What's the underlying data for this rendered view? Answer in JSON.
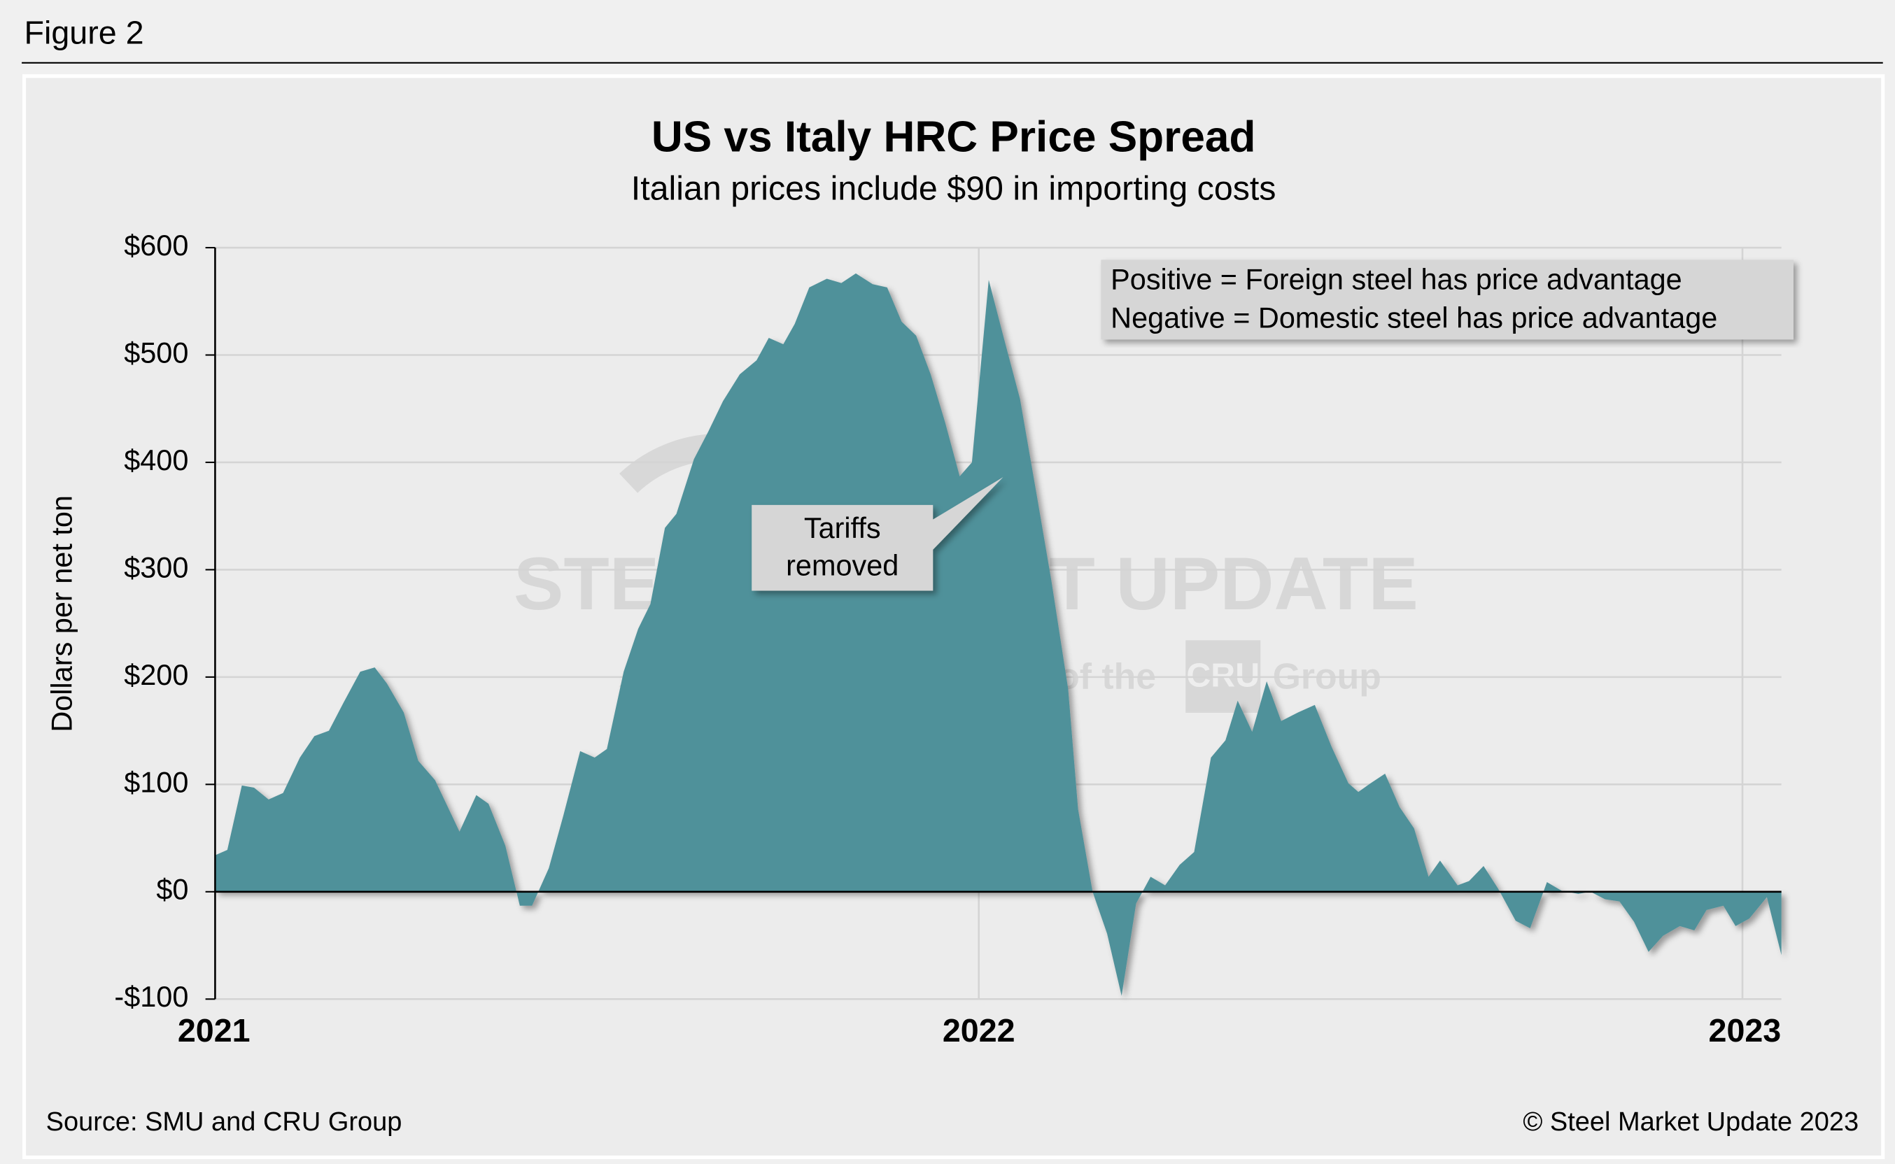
{
  "figure_label": "Figure 2",
  "chart_data": {
    "type": "area",
    "title": "US vs Italy HRC Price Spread",
    "subtitle": "Italian prices include $90 in importing costs",
    "y_label": "Dollars per net ton",
    "note": [
      "Positive = Foreign steel has price advantage",
      "Negative = Domestic steel has price advantage"
    ],
    "callout": [
      "Tariffs",
      "removed"
    ],
    "watermark": [
      "STEEL MARKET UPDATE",
      "part of the",
      "CRU",
      "Group"
    ],
    "source": "Source: SMU and CRU Group",
    "copyright": "© Steel Market Update 2023",
    "color": "#50919a",
    "grid": true,
    "xlim": [
      2021,
      2023.051
    ],
    "xticks": [
      2021,
      2022,
      2023
    ],
    "ylim": [
      -100,
      600
    ],
    "yticks": [
      {
        "value": -100,
        "label": "-$100"
      },
      {
        "value": 0,
        "label": "$0"
      },
      {
        "value": 100,
        "label": "$100"
      },
      {
        "value": 200,
        "label": "$200"
      },
      {
        "value": 300,
        "label": "$300"
      },
      {
        "value": 400,
        "label": "$400"
      },
      {
        "value": 500,
        "label": "$500"
      },
      {
        "value": 600,
        "label": "$600"
      }
    ],
    "x": [
      2021.0,
      2021.016,
      2021.035,
      2021.051,
      2021.07,
      2021.089,
      2021.111,
      2021.13,
      2021.149,
      2021.168,
      2021.19,
      2021.209,
      2021.225,
      2021.247,
      2021.266,
      2021.288,
      2021.32,
      2021.342,
      2021.358,
      2021.38,
      2021.399,
      2021.415,
      2021.437,
      2021.456,
      2021.478,
      2021.497,
      2021.513,
      2021.535,
      2021.554,
      2021.57,
      2021.589,
      2021.604,
      2021.627,
      2021.646,
      2021.665,
      2021.687,
      2021.709,
      2021.725,
      2021.744,
      2021.759,
      2021.778,
      2021.801,
      2021.82,
      2021.839,
      2021.861,
      2021.88,
      2021.899,
      2021.918,
      2021.937,
      2021.956,
      2021.975,
      2021.991,
      2022.013,
      2022.032,
      2022.054,
      2022.076,
      2022.095,
      2022.117,
      2022.13,
      2022.149,
      2022.168,
      2022.187,
      2022.206,
      2022.225,
      2022.244,
      2022.263,
      2022.282,
      2022.304,
      2022.323,
      2022.339,
      2022.358,
      2022.377,
      2022.396,
      2022.418,
      2022.44,
      2022.462,
      2022.484,
      2022.497,
      2022.513,
      2022.532,
      2022.551,
      2022.57,
      2022.589,
      2022.604,
      2022.627,
      2022.642,
      2022.661,
      2022.68,
      2022.703,
      2022.722,
      2022.744,
      2022.763,
      2022.785,
      2022.801,
      2022.82,
      2022.839,
      2022.858,
      2022.877,
      2022.896,
      2022.918,
      2022.937,
      2022.953,
      2022.975,
      2022.991,
      2023.009,
      2023.032,
      2023.051
    ],
    "values": [
      34,
      39,
      99,
      97,
      86,
      92,
      125,
      145,
      150,
      176,
      205,
      209,
      194,
      167,
      122,
      104,
      56,
      90,
      82,
      43,
      -13,
      -13,
      22,
      71,
      131,
      125,
      133,
      205,
      245,
      268,
      339,
      352,
      403,
      429,
      457,
      482,
      495,
      516,
      510,
      529,
      563,
      571,
      567,
      576,
      566,
      563,
      531,
      518,
      482,
      437,
      387,
      400,
      570,
      518,
      459,
      369,
      290,
      189,
      77,
      0,
      -39,
      -97,
      -11,
      14,
      6,
      25,
      37,
      125,
      141,
      178,
      149,
      196,
      159,
      167,
      174,
      135,
      101,
      93,
      101,
      110,
      79,
      59,
      14,
      29,
      6,
      10,
      24,
      3,
      -27,
      -34,
      9,
      1,
      -2,
      0,
      -7,
      -9,
      -28,
      -56,
      -41,
      -32,
      -36,
      -17,
      -13,
      -32,
      -25,
      -5,
      -59
    ]
  }
}
